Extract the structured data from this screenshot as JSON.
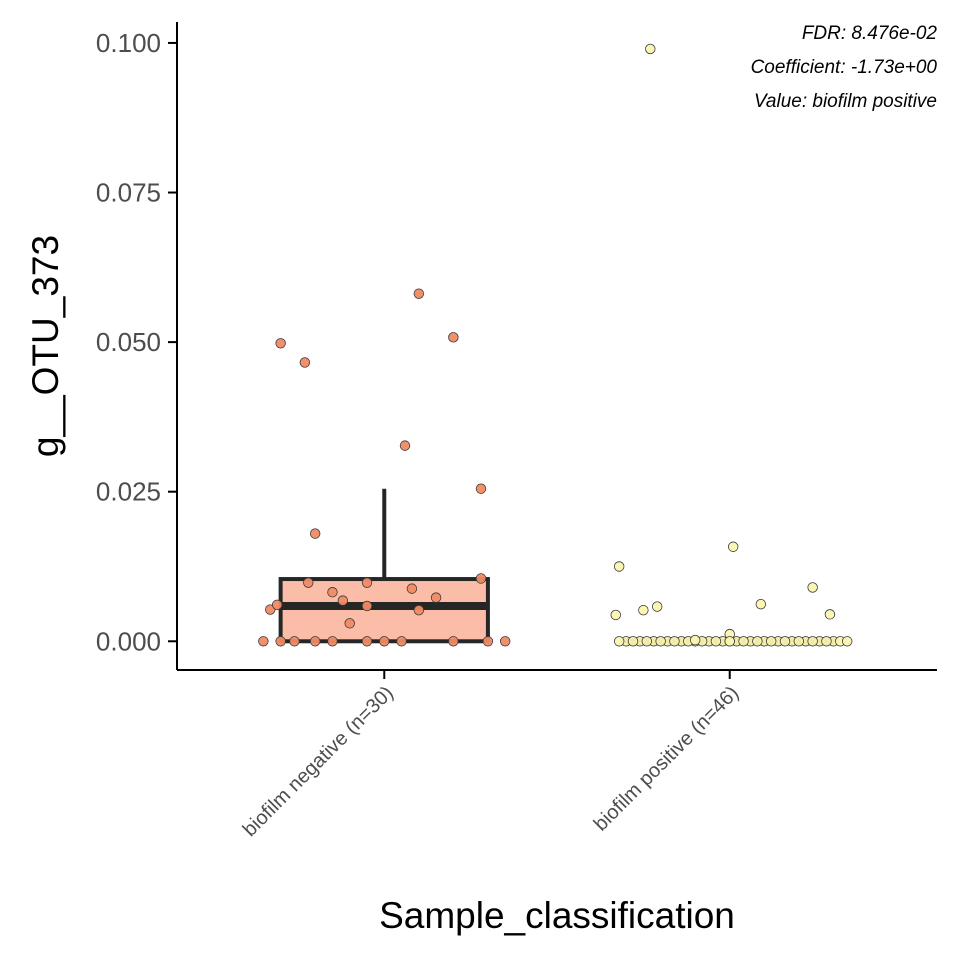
{
  "chart_data": {
    "type": "box",
    "xlabel": "Sample_classification",
    "ylabel": "g__OTU_373",
    "ylim": [
      -0.0048,
      0.1035
    ],
    "yticks": [
      0.0,
      0.025,
      0.05,
      0.075,
      0.1
    ],
    "ytick_labels": [
      "0.000",
      "0.025",
      "0.050",
      "0.075",
      "0.100"
    ],
    "grid": false,
    "annotations": [
      "FDR: 8.476e-02",
      "Coefficient: -1.73e+00",
      "Value: biofilm positive"
    ],
    "categories": [
      "biofilm negative (n=30)",
      "biofilm positive (n=46)"
    ],
    "groups": [
      {
        "category": "biofilm negative (n=30)",
        "fill": "#fbbda7",
        "point_color": "#f08a63",
        "box": {
          "min": 0.0,
          "q1": 0.0,
          "median": 0.0059,
          "q3": 0.0104,
          "max": 0.0255
        },
        "points": [
          [
            -0.35,
            0.0
          ],
          [
            -0.3,
            0.0
          ],
          [
            -0.2,
            0.0
          ],
          [
            -0.15,
            0.0
          ],
          [
            -0.05,
            0.0
          ],
          [
            0.05,
            0.0
          ],
          [
            0.2,
            0.0
          ],
          [
            0.3,
            0.0
          ],
          [
            0.35,
            0.0
          ],
          [
            -0.33,
            0.0053
          ],
          [
            -0.31,
            0.0061
          ],
          [
            -0.22,
            0.0098
          ],
          [
            -0.15,
            0.0082
          ],
          [
            -0.12,
            0.0068
          ],
          [
            -0.1,
            0.003
          ],
          [
            -0.05,
            0.0059
          ],
          [
            -0.05,
            0.0098
          ],
          [
            0.08,
            0.0088
          ],
          [
            0.1,
            0.0052
          ],
          [
            0.15,
            0.0073
          ],
          [
            0.28,
            0.0105
          ],
          [
            -0.2,
            0.018
          ],
          [
            0.06,
            0.0327
          ],
          [
            0.28,
            0.0255
          ],
          [
            -0.3,
            0.0498
          ],
          [
            -0.23,
            0.0466
          ],
          [
            0.1,
            0.0581
          ],
          [
            0.2,
            0.0508
          ],
          [
            -0.26,
            0.0
          ],
          [
            0.0,
            0.0
          ]
        ]
      },
      {
        "category": "biofilm positive (n=46)",
        "fill": "#fbf8be",
        "point_color": "#fbf5b0",
        "box": {
          "min": 0.0,
          "q1": 0.0,
          "median": 0.0,
          "q3": 0.0002,
          "max": 0.0002
        },
        "points": [
          [
            -0.3,
            0.0
          ],
          [
            -0.26,
            0.0
          ],
          [
            -0.22,
            0.0
          ],
          [
            -0.18,
            0.0
          ],
          [
            -0.14,
            0.0
          ],
          [
            -0.1,
            0.0
          ],
          [
            -0.06,
            0.0
          ],
          [
            -0.02,
            0.0
          ],
          [
            0.02,
            0.0
          ],
          [
            0.06,
            0.0
          ],
          [
            0.1,
            0.0
          ],
          [
            0.14,
            0.0
          ],
          [
            0.18,
            0.0
          ],
          [
            0.22,
            0.0
          ],
          [
            0.26,
            0.0
          ],
          [
            0.3,
            0.0
          ],
          [
            -0.28,
            0.0
          ],
          [
            -0.24,
            0.0
          ],
          [
            -0.2,
            0.0
          ],
          [
            -0.16,
            0.0
          ],
          [
            -0.12,
            0.0
          ],
          [
            -0.08,
            0.0
          ],
          [
            -0.04,
            0.0
          ],
          [
            0.0,
            0.0
          ],
          [
            0.04,
            0.0
          ],
          [
            0.08,
            0.0
          ],
          [
            0.12,
            0.0
          ],
          [
            0.16,
            0.0
          ],
          [
            0.2,
            0.0
          ],
          [
            0.24,
            0.0
          ],
          [
            0.28,
            0.0
          ],
          [
            0.32,
            0.0
          ],
          [
            0.34,
            0.0
          ],
          [
            -0.32,
            0.0
          ],
          [
            0.0,
            0.0012
          ],
          [
            -0.1,
            0.0002
          ],
          [
            -0.33,
            0.0044
          ],
          [
            -0.25,
            0.0052
          ],
          [
            -0.21,
            0.0058
          ],
          [
            0.09,
            0.0062
          ],
          [
            0.29,
            0.0045
          ],
          [
            -0.32,
            0.0125
          ],
          [
            0.01,
            0.0158
          ],
          [
            0.24,
            0.009
          ],
          [
            -0.23,
            0.099
          ],
          [
            0.0,
            0.0
          ]
        ]
      }
    ]
  }
}
